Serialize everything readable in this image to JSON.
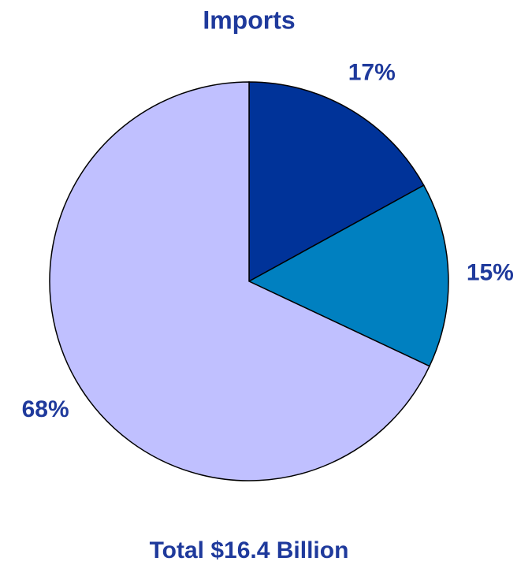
{
  "chart_data": {
    "type": "pie",
    "title": "Imports",
    "values": [
      17,
      15,
      68
    ],
    "value_labels": [
      "17%",
      "15%",
      "68%"
    ],
    "colors": [
      "#003399",
      "#0080c0",
      "#c0c0ff"
    ],
    "footer": "Total $16.4 Billion"
  }
}
